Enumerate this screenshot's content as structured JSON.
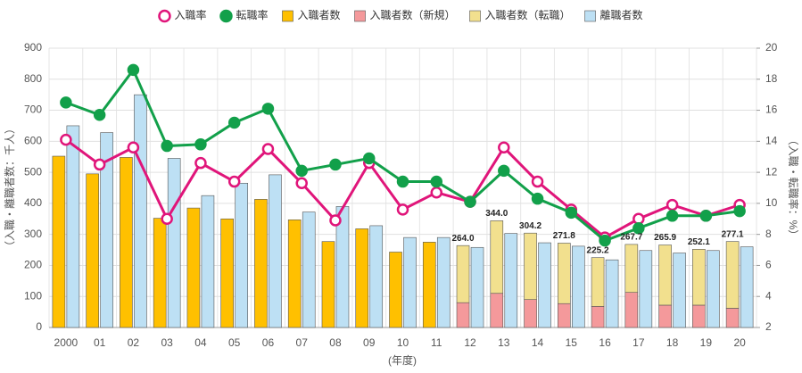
{
  "chart_data": {
    "type": "combo",
    "categories": [
      "2000",
      "01",
      "02",
      "03",
      "04",
      "05",
      "06",
      "07",
      "08",
      "09",
      "10",
      "11",
      "12",
      "13",
      "14",
      "15",
      "16",
      "17",
      "18",
      "19",
      "20"
    ],
    "x_label": "(年度)",
    "y_label": "（入職・離職者数：千人）",
    "y2_label": "（入職・転職率：%）",
    "ylim": [
      0,
      900
    ],
    "yticks": [
      0,
      100,
      200,
      300,
      400,
      500,
      600,
      700,
      800,
      900
    ],
    "y2lim": [
      2,
      20
    ],
    "y2ticks": [
      2,
      4,
      6,
      8,
      10,
      12,
      14,
      16,
      18,
      20
    ],
    "grid": true,
    "legend": "top",
    "series": [
      {
        "name": "入職率",
        "type": "line",
        "axis": "y2",
        "color": "#e0157a",
        "marker": "hollow",
        "values": [
          14.1,
          12.5,
          13.6,
          9.0,
          12.6,
          11.4,
          13.5,
          11.3,
          8.9,
          12.6,
          9.6,
          10.7,
          10.1,
          13.6,
          11.4,
          9.6,
          7.8,
          9.0,
          9.9,
          9.2,
          9.9
        ]
      },
      {
        "name": "転職率",
        "type": "line",
        "axis": "y2",
        "color": "#12a04a",
        "marker": "filled",
        "values": [
          16.5,
          15.7,
          18.6,
          13.7,
          13.8,
          15.2,
          16.1,
          12.1,
          12.5,
          12.9,
          11.4,
          11.4,
          10.1,
          12.1,
          10.3,
          9.4,
          7.6,
          8.4,
          9.2,
          9.2,
          9.5
        ]
      },
      {
        "name": "入職者数",
        "type": "bar",
        "color": "#ffc000",
        "values": [
          552,
          495,
          548,
          352,
          385,
          350,
          413,
          347,
          277,
          318,
          243,
          275,
          null,
          null,
          null,
          null,
          null,
          null,
          null,
          null,
          null
        ]
      },
      {
        "name": "入職者数（新規）",
        "type": "stack",
        "color": "#f4999b",
        "values": [
          null,
          null,
          null,
          null,
          null,
          null,
          null,
          null,
          null,
          null,
          null,
          null,
          80,
          110,
          90,
          77,
          68,
          113,
          72,
          72,
          62
        ]
      },
      {
        "name": "入職者数（転職）",
        "type": "stack",
        "color": "#f2e08e",
        "values": [
          null,
          null,
          null,
          null,
          null,
          null,
          null,
          null,
          null,
          null,
          null,
          null,
          184.0,
          234.0,
          214.2,
          194.8,
          157.2,
          154.7,
          193.9,
          180.1,
          215.1
        ]
      },
      {
        "name": "離職者数",
        "type": "bar2",
        "color": "#bde0f4",
        "values": [
          650,
          628,
          750,
          545,
          425,
          465,
          492,
          372,
          390,
          328,
          290,
          290,
          258,
          303,
          273,
          262,
          218,
          248,
          240,
          248,
          260
        ]
      }
    ],
    "stack_totals": {
      "values": [
        null,
        null,
        null,
        null,
        null,
        null,
        null,
        null,
        null,
        null,
        null,
        null,
        264.0,
        344.0,
        304.2,
        271.8,
        225.2,
        267.7,
        265.9,
        252.1,
        277.1
      ],
      "value_labels": [
        null,
        null,
        null,
        null,
        null,
        null,
        null,
        null,
        null,
        null,
        null,
        null,
        "264.0",
        "344.0",
        "304.2",
        "271.8",
        "225.2",
        "267.7",
        "265.9",
        "252.1",
        "277.1"
      ]
    }
  }
}
